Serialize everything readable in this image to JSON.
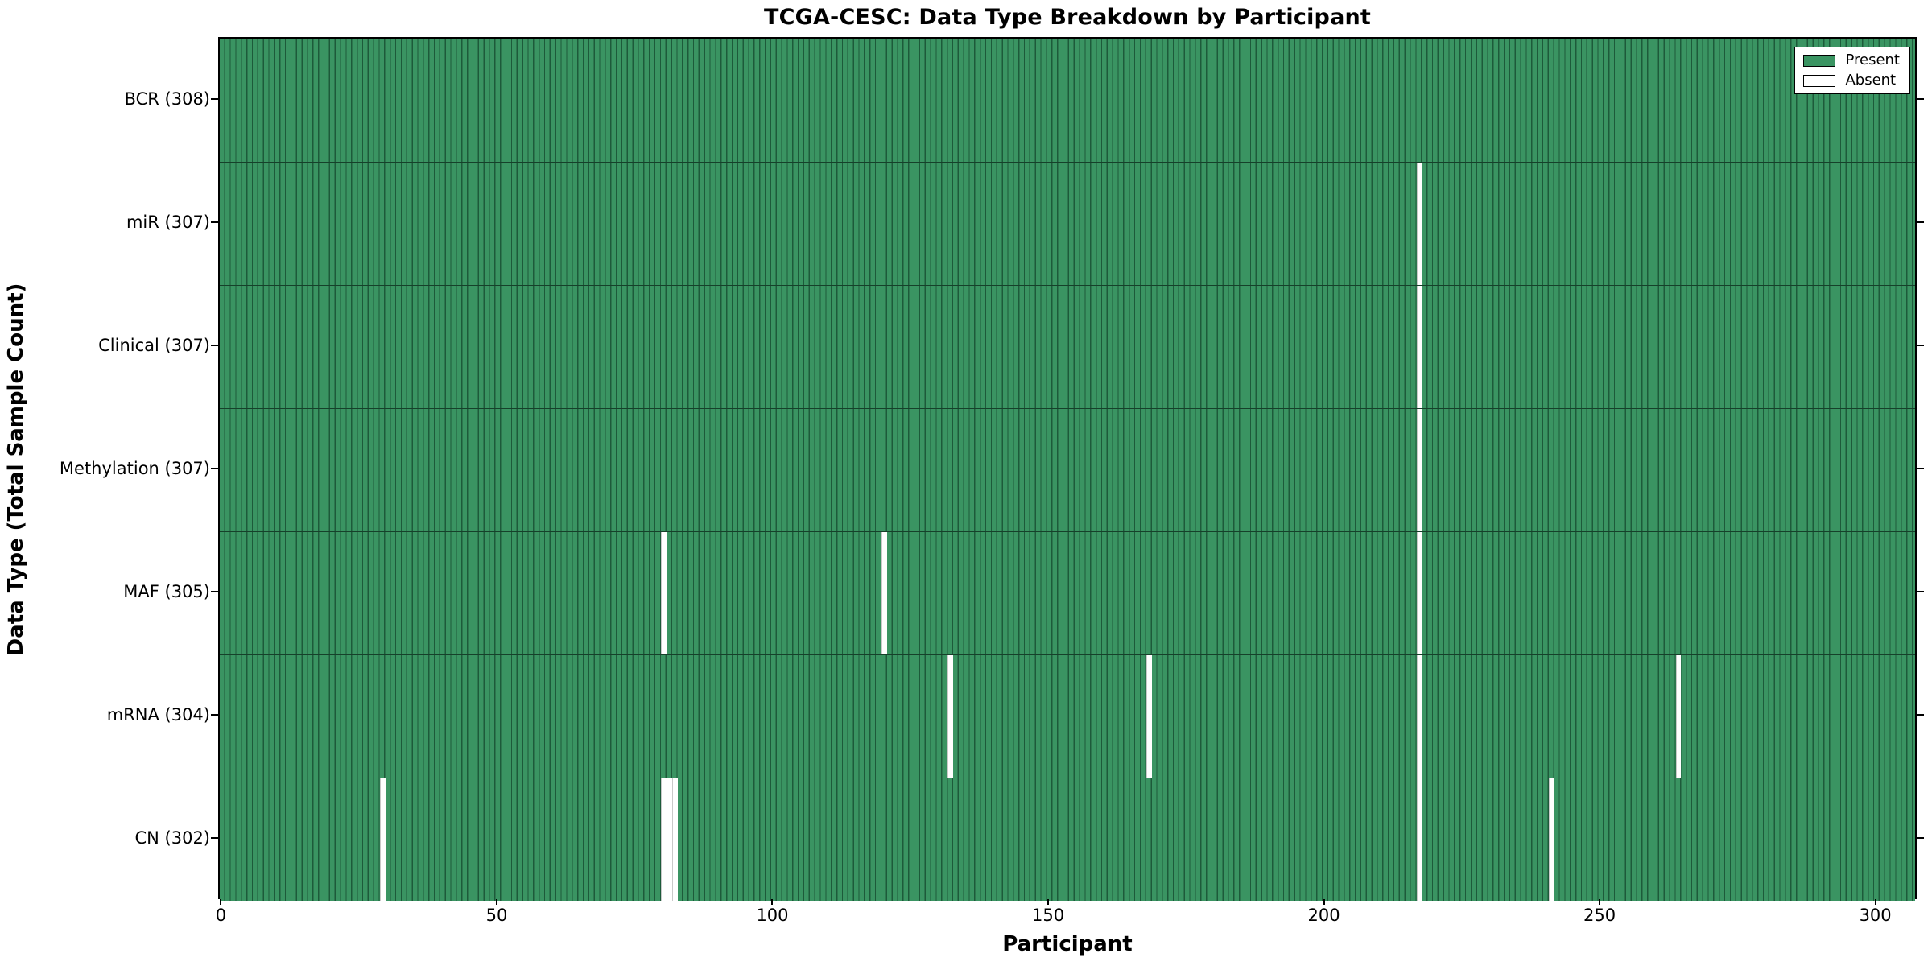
{
  "figure": {
    "title": "TCGA-CESC: Data Type Breakdown by Participant",
    "xlabel": "Participant",
    "ylabel": "Data Type (Total Sample Count)"
  },
  "chart_data": {
    "type": "heatmap",
    "title": "TCGA-CESC: Data Type Breakdown by Participant",
    "xlabel": "Participant",
    "ylabel": "Data Type (Total Sample Count)",
    "n_participants": 308,
    "x_axis": {
      "ticks": [
        0,
        50,
        100,
        150,
        200,
        250,
        300
      ],
      "range": [
        0,
        308
      ],
      "grid": false
    },
    "rows": [
      {
        "name": "BCR",
        "label": "BCR (308)",
        "total": 308,
        "absent_participants": []
      },
      {
        "name": "miR",
        "label": "miR (307)",
        "total": 307,
        "absent_participants": [
          217
        ]
      },
      {
        "name": "Clinical",
        "label": "Clinical (307)",
        "total": 307,
        "absent_participants": [
          217
        ]
      },
      {
        "name": "Methylation",
        "label": "Methylation (307)",
        "total": 307,
        "absent_participants": [
          217
        ]
      },
      {
        "name": "MAF",
        "label": "MAF (305)",
        "total": 305,
        "absent_participants": [
          80,
          120,
          217
        ]
      },
      {
        "name": "mRNA",
        "label": "mRNA (304)",
        "total": 304,
        "absent_participants": [
          132,
          168,
          217,
          264
        ]
      },
      {
        "name": "CN",
        "label": "CN (302)",
        "total": 302,
        "absent_participants": [
          29,
          80,
          81,
          82,
          217,
          241
        ]
      }
    ],
    "legend": {
      "position": "upper right",
      "entries": [
        {
          "label": "Present",
          "color": "#3a9462"
        },
        {
          "label": "Absent",
          "color": "#ffffff"
        }
      ]
    },
    "colors": {
      "present_fill": "#3a9462",
      "bar_edge": "#1d5a3a",
      "row_divider": "#16402a",
      "absent_fill": "#ffffff",
      "axis": "#000000",
      "background": "#ffffff"
    }
  }
}
